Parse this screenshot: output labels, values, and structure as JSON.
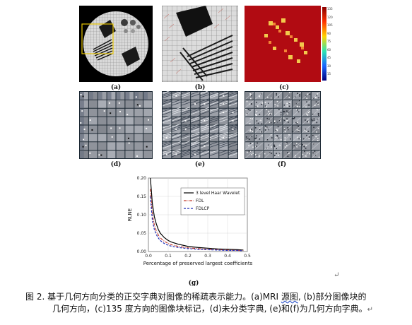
{
  "figure": {
    "panel_labels": {
      "a": "(a)",
      "b": "(b)",
      "c": "(c)",
      "d": "(d)",
      "e": "(e)",
      "f": "(f)",
      "g": "(g)"
    },
    "colorbar_ticks": [
      "135",
      "120",
      "105",
      "90",
      "75",
      "60",
      "45",
      "30",
      "15"
    ],
    "colors": {
      "haar": "#000000",
      "fdl": "#c0392b",
      "fdlcp": "#1f2fb8",
      "heatmap_bg": "#b10b12",
      "dict_grid": "#1c2833"
    }
  },
  "chart_data": {
    "type": "line",
    "xlabel": "Percentage of preserved largest coefficients",
    "ylabel": "RLNE",
    "xlim": [
      0,
      0.5
    ],
    "ylim": [
      0,
      0.2
    ],
    "xticks": [
      "0.0",
      "0.1",
      "0.2",
      "0.3",
      "0.4",
      "0.5"
    ],
    "yticks": [
      "0.00",
      "0.05",
      "0.10",
      "0.15",
      "0.20"
    ],
    "legend_position": "top-right",
    "series": [
      {
        "name": "3 level Haar Wavelet",
        "style": "solid",
        "x": [
          0.01,
          0.02,
          0.03,
          0.04,
          0.05,
          0.06,
          0.08,
          0.1,
          0.12,
          0.15,
          0.2,
          0.25,
          0.3,
          0.35,
          0.4,
          0.45,
          0.48
        ],
        "y": [
          0.2,
          0.13,
          0.095,
          0.075,
          0.06,
          0.05,
          0.038,
          0.03,
          0.025,
          0.02,
          0.014,
          0.011,
          0.009,
          0.007,
          0.006,
          0.005,
          0.004
        ]
      },
      {
        "name": "FDL",
        "style": "dashdot",
        "x": [
          0.01,
          0.02,
          0.03,
          0.04,
          0.05,
          0.06,
          0.08,
          0.1,
          0.12,
          0.15,
          0.2,
          0.25,
          0.3,
          0.35,
          0.4,
          0.45,
          0.48
        ],
        "y": [
          0.17,
          0.1,
          0.072,
          0.056,
          0.045,
          0.037,
          0.028,
          0.022,
          0.018,
          0.014,
          0.01,
          0.008,
          0.006,
          0.005,
          0.004,
          0.003,
          0.003
        ]
      },
      {
        "name": "FDLCP",
        "style": "dashed",
        "x": [
          0.01,
          0.02,
          0.03,
          0.04,
          0.05,
          0.06,
          0.08,
          0.1,
          0.12,
          0.15,
          0.2,
          0.25,
          0.3,
          0.35,
          0.4,
          0.45,
          0.48
        ],
        "y": [
          0.15,
          0.085,
          0.06,
          0.046,
          0.037,
          0.03,
          0.022,
          0.017,
          0.014,
          0.011,
          0.008,
          0.006,
          0.005,
          0.004,
          0.003,
          0.003,
          0.002
        ]
      }
    ]
  },
  "caption": {
    "line1_pre": "图 2. 基于几何方向分类的正交字典对图像的稀疏表示能力。(a)MRI ",
    "line1_squiggle": "源图",
    "line1_post": ", (b)部分图像块的",
    "line2": "几何方向，(c)135 度方向的图像块标记，(d)未分类字典, (e)和(f)为几何方向字典。",
    "return_mark": "↵"
  }
}
